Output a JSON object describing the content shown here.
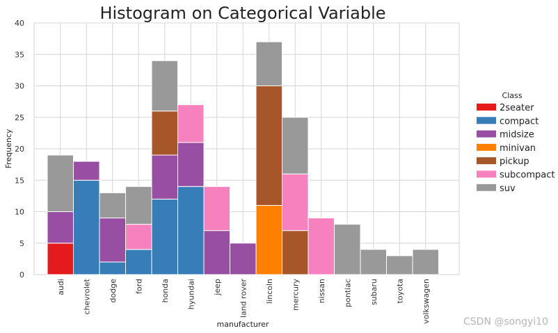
{
  "chart_data": {
    "type": "bar",
    "stacked": true,
    "title": "Histogram on Categorical Variable",
    "xlabel": "manufacturer",
    "ylabel": "Frequency",
    "ylim": [
      0,
      40
    ],
    "yticks": [
      0,
      5,
      10,
      15,
      20,
      25,
      30,
      35,
      40
    ],
    "grid": true,
    "legend_title": "Class",
    "legend_position": "right",
    "categories": [
      "audi",
      "chevrolet",
      "dodge",
      "ford",
      "honda",
      "hyundai",
      "jeep",
      "land rover",
      "lincoln",
      "mercury",
      "nissan",
      "pontiac",
      "subaru",
      "toyota",
      "volkswagen"
    ],
    "series": [
      {
        "name": "2seater",
        "color": "#e41a1c",
        "values": [
          5,
          0,
          0,
          0,
          0,
          0,
          0,
          0,
          0,
          0,
          0,
          0,
          0,
          0,
          0
        ]
      },
      {
        "name": "compact",
        "color": "#377eb8",
        "values": [
          0,
          15,
          2,
          4,
          12,
          14,
          0,
          0,
          0,
          0,
          0,
          0,
          0,
          0,
          0
        ]
      },
      {
        "name": "midsize",
        "color": "#984ea3",
        "values": [
          5,
          3,
          7,
          0,
          7,
          7,
          7,
          5,
          0,
          0,
          0,
          0,
          0,
          0,
          0
        ]
      },
      {
        "name": "minivan",
        "color": "#ff7f00",
        "values": [
          0,
          0,
          0,
          0,
          0,
          0,
          0,
          0,
          11,
          0,
          0,
          0,
          0,
          0,
          0
        ]
      },
      {
        "name": "pickup",
        "color": "#a65628",
        "values": [
          0,
          0,
          0,
          0,
          7,
          0,
          0,
          0,
          19,
          7,
          0,
          0,
          0,
          0,
          0
        ]
      },
      {
        "name": "subcompact",
        "color": "#f781bf",
        "values": [
          0,
          0,
          0,
          4,
          0,
          6,
          7,
          0,
          0,
          9,
          9,
          0,
          0,
          0,
          0
        ]
      },
      {
        "name": "suv",
        "color": "#999999",
        "values": [
          9,
          0,
          4,
          6,
          8,
          0,
          0,
          0,
          7,
          9,
          0,
          8,
          4,
          3,
          4
        ]
      }
    ]
  },
  "watermark": "CSDN @songyi10"
}
